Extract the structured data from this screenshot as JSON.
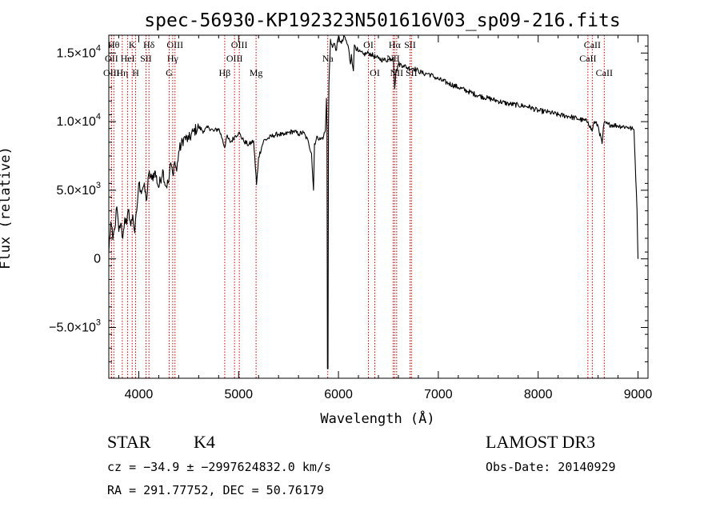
{
  "chart_data": {
    "type": "line",
    "title": "spec-56930-KP192323N501616V03_sp09-216.fits",
    "xlabel": "Wavelength (Å)",
    "ylabel": "Flux (relative)",
    "xlim": [
      3700,
      9100
    ],
    "ylim": [
      -8700,
      16300
    ],
    "x_ticks": [
      {
        "value": 4000,
        "label": "4000"
      },
      {
        "value": 5000,
        "label": "5000"
      },
      {
        "value": 6000,
        "label": "6000"
      },
      {
        "value": 7000,
        "label": "7000"
      },
      {
        "value": 8000,
        "label": "8000"
      },
      {
        "value": 9000,
        "label": "9000"
      }
    ],
    "y_ticks": [
      {
        "value": 15000,
        "mant": "1.5×10",
        "exp": "4"
      },
      {
        "value": 10000,
        "mant": "1.0×10",
        "exp": "4"
      },
      {
        "value": 5000,
        "mant": "5.0×10",
        "exp": "3"
      },
      {
        "value": 0,
        "mant": "0",
        "exp": ""
      },
      {
        "value": -5000,
        "mant": "−5.0×10",
        "exp": "3"
      }
    ],
    "series": [
      {
        "name": "spectrum",
        "points": [
          [
            3700,
            500
          ],
          [
            3720,
            2700
          ],
          [
            3740,
            1400
          ],
          [
            3760,
            2200
          ],
          [
            3780,
            3800
          ],
          [
            3800,
            2000
          ],
          [
            3820,
            2600
          ],
          [
            3840,
            1500
          ],
          [
            3860,
            3000
          ],
          [
            3880,
            2500
          ],
          [
            3900,
            3600
          ],
          [
            3920,
            2400
          ],
          [
            3940,
            3200
          ],
          [
            3960,
            1900
          ],
          [
            3980,
            3500
          ],
          [
            4000,
            5500
          ],
          [
            4020,
            5000
          ],
          [
            4050,
            5300
          ],
          [
            4080,
            4300
          ],
          [
            4100,
            6200
          ],
          [
            4130,
            5800
          ],
          [
            4160,
            6400
          ],
          [
            4200,
            5200
          ],
          [
            4240,
            6500
          ],
          [
            4270,
            5300
          ],
          [
            4300,
            5600
          ],
          [
            4320,
            7000
          ],
          [
            4340,
            6200
          ],
          [
            4360,
            7100
          ],
          [
            4380,
            6400
          ],
          [
            4400,
            7800
          ],
          [
            4450,
            8800
          ],
          [
            4500,
            8700
          ],
          [
            4550,
            9300
          ],
          [
            4600,
            9600
          ],
          [
            4650,
            9300
          ],
          [
            4700,
            9600
          ],
          [
            4750,
            9300
          ],
          [
            4800,
            9500
          ],
          [
            4840,
            8700
          ],
          [
            4860,
            8100
          ],
          [
            4880,
            8900
          ],
          [
            4920,
            8500
          ],
          [
            4960,
            8900
          ],
          [
            5000,
            9200
          ],
          [
            5050,
            8600
          ],
          [
            5100,
            8300
          ],
          [
            5150,
            8600
          ],
          [
            5180,
            5400
          ],
          [
            5200,
            7400
          ],
          [
            5250,
            8600
          ],
          [
            5300,
            8800
          ],
          [
            5350,
            9000
          ],
          [
            5400,
            9100
          ],
          [
            5450,
            9000
          ],
          [
            5500,
            9200
          ],
          [
            5550,
            9300
          ],
          [
            5600,
            9100
          ],
          [
            5650,
            9200
          ],
          [
            5700,
            8500
          ],
          [
            5730,
            7700
          ],
          [
            5750,
            5000
          ],
          [
            5760,
            8400
          ],
          [
            5790,
            8900
          ],
          [
            5820,
            8700
          ],
          [
            5850,
            8900
          ],
          [
            5870,
            9400
          ],
          [
            5880,
            11700
          ],
          [
            5885,
            9600
          ],
          [
            5890,
            -8000
          ],
          [
            5895,
            -8000
          ],
          [
            5900,
            9500
          ],
          [
            5905,
            12800
          ],
          [
            5920,
            16000
          ],
          [
            5940,
            15400
          ],
          [
            5960,
            15700
          ],
          [
            5980,
            15200
          ],
          [
            6000,
            16200
          ],
          [
            6030,
            15700
          ],
          [
            6060,
            16200
          ],
          [
            6100,
            15400
          ],
          [
            6120,
            14200
          ],
          [
            6130,
            14900
          ],
          [
            6150,
            13700
          ],
          [
            6160,
            15600
          ],
          [
            6200,
            15100
          ],
          [
            6250,
            14900
          ],
          [
            6300,
            15000
          ],
          [
            6330,
            14900
          ],
          [
            6370,
            14700
          ],
          [
            6400,
            14600
          ],
          [
            6450,
            14500
          ],
          [
            6500,
            14500
          ],
          [
            6550,
            14700
          ],
          [
            6563,
            12400
          ],
          [
            6575,
            13500
          ],
          [
            6600,
            14200
          ],
          [
            6650,
            14100
          ],
          [
            6700,
            13900
          ],
          [
            6750,
            13900
          ],
          [
            6800,
            13700
          ],
          [
            6850,
            13500
          ],
          [
            6900,
            13500
          ],
          [
            6950,
            13300
          ],
          [
            7000,
            13100
          ],
          [
            7100,
            12800
          ],
          [
            7200,
            12500
          ],
          [
            7300,
            12200
          ],
          [
            7400,
            11900
          ],
          [
            7500,
            11700
          ],
          [
            7600,
            11500
          ],
          [
            7700,
            11300
          ],
          [
            7800,
            11200
          ],
          [
            7900,
            11100
          ],
          [
            8000,
            10800
          ],
          [
            8100,
            10700
          ],
          [
            8200,
            10500
          ],
          [
            8300,
            10400
          ],
          [
            8400,
            10200
          ],
          [
            8500,
            10000
          ],
          [
            8540,
            9300
          ],
          [
            8560,
            10000
          ],
          [
            8600,
            9700
          ],
          [
            8640,
            8400
          ],
          [
            8660,
            9900
          ],
          [
            8700,
            9800
          ],
          [
            8800,
            9700
          ],
          [
            8900,
            9600
          ],
          [
            8960,
            9400
          ],
          [
            8990,
            3500
          ],
          [
            9000,
            0
          ]
        ]
      }
    ],
    "line_marks": [
      {
        "name": "OII",
        "x": 3727,
        "label_y": 17
      },
      {
        "name": "OIII",
        "x": 3727,
        "label_y": 35
      },
      {
        "name": "Hθ",
        "x": 3750,
        "label_y": 0
      },
      {
        "name": "Hη",
        "x": 3835,
        "label_y": 35
      },
      {
        "name": "K",
        "x": 3934,
        "label_y": 0
      },
      {
        "name": "HeI",
        "x": 3889,
        "label_y": 17
      },
      {
        "name": "H",
        "x": 3969,
        "label_y": 35
      },
      {
        "name": "SII",
        "x": 4072,
        "label_y": 17
      },
      {
        "name": "Hδ",
        "x": 4102,
        "label_y": 0
      },
      {
        "name": "OIII",
        "x": 4363,
        "label_y": 0
      },
      {
        "name": "Hγ",
        "x": 4340,
        "label_y": 17
      },
      {
        "name": "G",
        "x": 4305,
        "label_y": 35
      },
      {
        "name": "Hβ",
        "x": 4861,
        "label_y": 35
      },
      {
        "name": "OIII",
        "x": 5007,
        "label_y": 0
      },
      {
        "name": "OIII",
        "x": 4959,
        "label_y": 17
      },
      {
        "name": "Mg",
        "x": 5175,
        "label_y": 35
      },
      {
        "name": "Na",
        "x": 5893,
        "label_y": 17
      },
      {
        "name": "OI",
        "x": 6300,
        "label_y": 0
      },
      {
        "name": "OI",
        "x": 6364,
        "label_y": 35
      },
      {
        "name": "Hα",
        "x": 6563,
        "label_y": 0
      },
      {
        "name": "SII",
        "x": 6717,
        "label_y": 0
      },
      {
        "name": "NII",
        "x": 6548,
        "label_y": 17
      },
      {
        "name": "NII",
        "x": 6583,
        "label_y": 35
      },
      {
        "name": "SII",
        "x": 6731,
        "label_y": 35
      },
      {
        "name": "CaII",
        "x": 8542,
        "label_y": 0
      },
      {
        "name": "CaII",
        "x": 8498,
        "label_y": 17
      },
      {
        "name": "CaII",
        "x": 8662,
        "label_y": 35
      }
    ],
    "line_color": "#cc0000"
  },
  "info": {
    "class": "STAR",
    "subclass": "K4",
    "survey": "LAMOST DR3",
    "cz": "cz = −34.9 ± −2997624832.0 km/s",
    "obs_date": "Obs-Date: 20140929",
    "radec": "RA = 291.77752, DEC =  50.76179"
  }
}
